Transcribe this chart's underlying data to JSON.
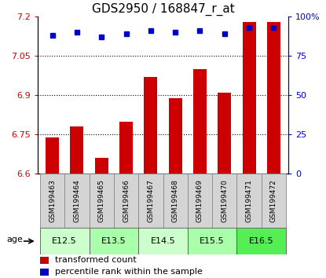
{
  "title": "GDS2950 / 168847_r_at",
  "samples": [
    "GSM199463",
    "GSM199464",
    "GSM199465",
    "GSM199466",
    "GSM199467",
    "GSM199468",
    "GSM199469",
    "GSM199470",
    "GSM199471",
    "GSM199472"
  ],
  "red_values": [
    6.74,
    6.78,
    6.66,
    6.8,
    6.97,
    6.89,
    7.0,
    6.91,
    7.18,
    7.18
  ],
  "blue_values": [
    88,
    90,
    87,
    89,
    91,
    90,
    91,
    89,
    93,
    93
  ],
  "ylim_left": [
    6.6,
    7.2
  ],
  "ylim_right": [
    0,
    100
  ],
  "yticks_left": [
    6.6,
    6.75,
    6.9,
    7.05,
    7.2
  ],
  "yticks_right": [
    0,
    25,
    50,
    75,
    100
  ],
  "ytick_labels_left": [
    "6.6",
    "6.75",
    "6.9",
    "7.05",
    "7.2"
  ],
  "ytick_labels_right": [
    "0",
    "25",
    "50",
    "75",
    "100%"
  ],
  "hlines": [
    6.75,
    6.9,
    7.05
  ],
  "age_groups": [
    {
      "label": "E12.5",
      "indices": [
        0,
        1
      ],
      "color": "#ccffcc"
    },
    {
      "label": "E13.5",
      "indices": [
        2,
        3
      ],
      "color": "#aaffaa"
    },
    {
      "label": "E14.5",
      "indices": [
        4,
        5
      ],
      "color": "#ccffcc"
    },
    {
      "label": "E15.5",
      "indices": [
        6,
        7
      ],
      "color": "#aaffaa"
    },
    {
      "label": "E16.5",
      "indices": [
        8,
        9
      ],
      "color": "#55ee55"
    }
  ],
  "bar_color": "#cc0000",
  "dot_color": "#0000cc",
  "label_red": "transformed count",
  "label_blue": "percentile rank within the sample",
  "fig_width": 4.15,
  "fig_height": 3.54,
  "dpi": 100
}
